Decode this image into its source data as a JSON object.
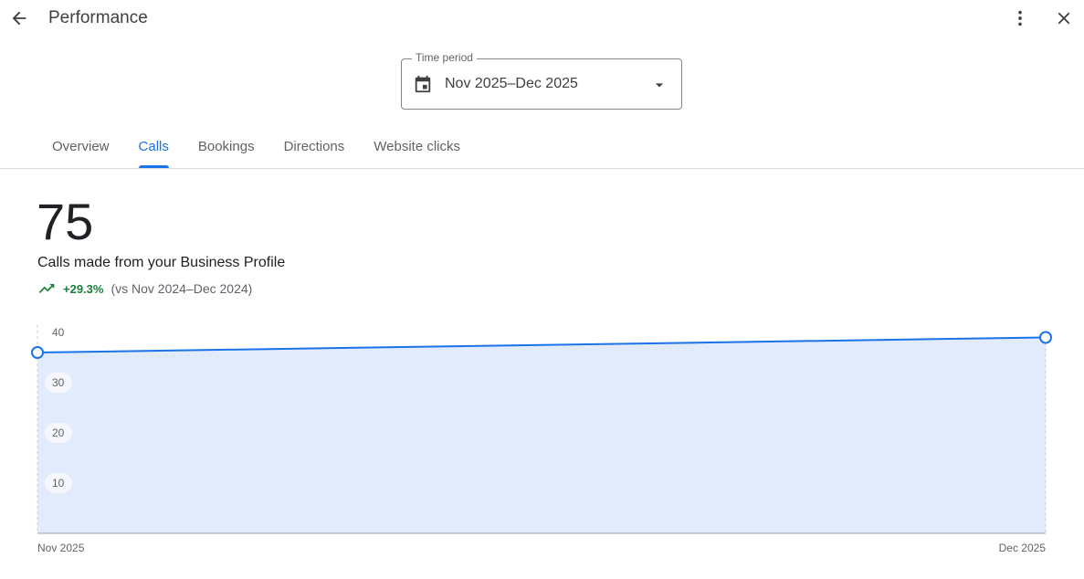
{
  "header": {
    "title": "Performance",
    "back_icon": "arrow-back-icon",
    "more_icon": "more-vert-icon",
    "close_icon": "close-icon"
  },
  "time_period": {
    "label": "Time period",
    "value": "Nov 2025–Dec 2025",
    "icon": "calendar-icon"
  },
  "tabs": [
    {
      "label": "Overview"
    },
    {
      "label": "Calls",
      "active": true
    },
    {
      "label": "Bookings"
    },
    {
      "label": "Directions"
    },
    {
      "label": "Website clicks"
    }
  ],
  "summary": {
    "total": "75",
    "description": "Calls made from your Business Profile",
    "change": "+29.3%",
    "comparison": "(vs Nov 2024–Dec 2024)",
    "trend_icon": "trending-up-icon"
  },
  "colors": {
    "accent": "#1a73e8",
    "positive": "#188038",
    "fill": "#e2ebfb"
  },
  "chart_data": {
    "type": "area",
    "categories": [
      "Nov 2025",
      "Dec 2025"
    ],
    "values": [
      36,
      39
    ],
    "ylim": [
      0,
      40
    ],
    "yticks": [
      "10",
      "20",
      "30",
      "40"
    ],
    "grid": false
  }
}
